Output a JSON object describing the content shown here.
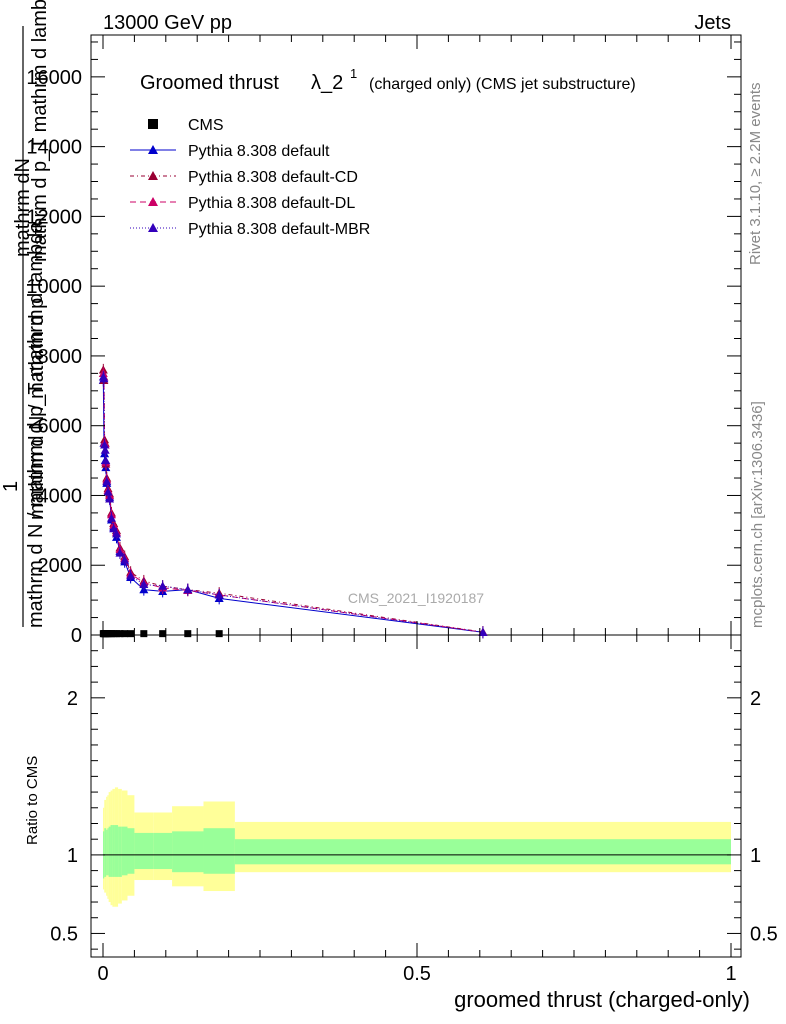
{
  "header": {
    "left": "13000 GeV pp",
    "right": "Jets"
  },
  "title": {
    "main": "Groomed thrust",
    "symbol": "λ_2",
    "sup": "1",
    "small": "(charged only) (CMS jet substructure)"
  },
  "side_labels": {
    "rivet": "Rivet 3.1.10, ≥ 2.2M events",
    "mcplots": "mcplots.cern.ch [arXiv:1306.3436]"
  },
  "watermark": "CMS_2021_I1920187",
  "y_label": {
    "numerator": "mathrm dN",
    "numerator_2": "mathrm d p_T mathrm d lambda",
    "one": "1",
    "denominator": "mathrm d N / mathrm d p_T mathrm d lambda",
    "fragment": "mathrm d N / mathrm d p"
  },
  "x_label": "groomed thrust (charged-only)",
  "ratio_label": "Ratio to CMS",
  "legend": [
    {
      "label": "CMS",
      "color": "#000000",
      "marker": "square",
      "dash": ""
    },
    {
      "label": "Pythia 8.308 default",
      "color": "#0000cc",
      "marker": "triangle",
      "dash": ""
    },
    {
      "label": "Pythia 8.308 default-CD",
      "color": "#990033",
      "marker": "triangle",
      "dash": "4,3,1,3"
    },
    {
      "label": "Pythia 8.308 default-DL",
      "color": "#cc0066",
      "marker": "triangle",
      "dash": "6,4"
    },
    {
      "label": "Pythia 8.308 default-MBR",
      "color": "#3300bb",
      "marker": "triangle",
      "dash": "1,2"
    }
  ],
  "chart_data": {
    "type": "line",
    "x_range": [
      -0.02,
      1.0
    ],
    "main_ylim": [
      0,
      17200
    ],
    "main_yticks": [
      0,
      2000,
      4000,
      6000,
      8000,
      10000,
      12000,
      14000,
      16000
    ],
    "main_ytick_labels": [
      "0",
      "2000",
      "4000",
      "6000",
      "8000",
      "10000",
      "12000",
      "14000",
      "16000"
    ],
    "xticks": [
      0,
      0.5,
      1
    ],
    "xtick_labels": [
      "0",
      "0.5",
      "1"
    ],
    "ratio_ylim": [
      0.35,
      2.4
    ],
    "ratio_yticks": [
      0.5,
      1,
      2
    ],
    "ratio_ytick_labels": [
      "0.5",
      "1",
      "2"
    ],
    "cms": {
      "name": "CMS",
      "x": [
        0.0005,
        0.0015,
        0.0025,
        0.0035,
        0.0045,
        0.006,
        0.008,
        0.0105,
        0.0135,
        0.017,
        0.0215,
        0.027,
        0.0345,
        0.044,
        0.065,
        0.095,
        0.135,
        0.185
      ],
      "y": [
        10,
        10,
        10,
        10,
        10,
        10,
        10,
        10,
        10,
        10,
        10,
        10,
        10,
        10,
        10,
        10,
        10,
        10
      ]
    },
    "series": [
      {
        "name": "Pythia 8.308 default",
        "x": [
          0.0005,
          0.0015,
          0.0025,
          0.0035,
          0.0045,
          0.006,
          0.008,
          0.0105,
          0.0135,
          0.017,
          0.0215,
          0.027,
          0.0345,
          0.044,
          0.065,
          0.095,
          0.135,
          0.185,
          0.605
        ],
        "y": [
          7300,
          5500,
          5200,
          5000,
          4800,
          4350,
          4100,
          3950,
          3300,
          3100,
          2800,
          2400,
          2100,
          1650,
          1300,
          1250,
          1300,
          1050,
          80
        ]
      },
      {
        "name": "Pythia 8.308 default-CD",
        "x": [
          0.0005,
          0.0015,
          0.0025,
          0.0035,
          0.0045,
          0.006,
          0.008,
          0.0105,
          0.0135,
          0.017,
          0.0215,
          0.027,
          0.0345,
          0.044,
          0.065,
          0.095,
          0.135,
          0.185,
          0.605
        ],
        "y": [
          7600,
          7300,
          5600,
          5500,
          4900,
          4500,
          4200,
          4050,
          3500,
          3200,
          3000,
          2500,
          2250,
          1800,
          1550,
          1400,
          1300,
          1200,
          85
        ]
      },
      {
        "name": "Pythia 8.308 default-DL",
        "x": [
          0.0005,
          0.0015,
          0.0025,
          0.0035,
          0.0045,
          0.006,
          0.008,
          0.0105,
          0.0135,
          0.017,
          0.0215,
          0.027,
          0.0345,
          0.044,
          0.065,
          0.095,
          0.135,
          0.185,
          0.605
        ],
        "y": [
          7500,
          7400,
          5500,
          5450,
          4950,
          4450,
          4150,
          4000,
          3450,
          3150,
          2950,
          2450,
          2200,
          1750,
          1500,
          1350,
          1280,
          1150,
          80
        ]
      },
      {
        "name": "Pythia 8.308 default-MBR",
        "x": [
          0.0005,
          0.0015,
          0.0025,
          0.0035,
          0.0045,
          0.006,
          0.008,
          0.0105,
          0.0135,
          0.017,
          0.0215,
          0.027,
          0.0345,
          0.044,
          0.065,
          0.095,
          0.135,
          0.185,
          0.605
        ],
        "y": [
          7400,
          7350,
          5450,
          5300,
          5000,
          4400,
          4100,
          3900,
          3350,
          3050,
          2900,
          2350,
          2150,
          1700,
          1450,
          1400,
          1300,
          1150,
          75
        ]
      }
    ],
    "ratio_bands": [
      {
        "x0": 0.0,
        "x1": 0.002,
        "inner": [
          0.85,
          1.15
        ],
        "outer": [
          0.78,
          1.3
        ]
      },
      {
        "x0": 0.002,
        "x1": 0.005,
        "inner": [
          0.86,
          1.17
        ],
        "outer": [
          0.76,
          1.35
        ]
      },
      {
        "x0": 0.005,
        "x1": 0.007,
        "inner": [
          0.87,
          1.16
        ],
        "outer": [
          0.74,
          1.37
        ]
      },
      {
        "x0": 0.007,
        "x1": 0.009,
        "inner": [
          0.87,
          1.17
        ],
        "outer": [
          0.72,
          1.38
        ]
      },
      {
        "x0": 0.009,
        "x1": 0.012,
        "inner": [
          0.86,
          1.18
        ],
        "outer": [
          0.7,
          1.4
        ]
      },
      {
        "x0": 0.012,
        "x1": 0.015,
        "inner": [
          0.86,
          1.19
        ],
        "outer": [
          0.68,
          1.41
        ]
      },
      {
        "x0": 0.015,
        "x1": 0.019,
        "inner": [
          0.86,
          1.19
        ],
        "outer": [
          0.67,
          1.42
        ]
      },
      {
        "x0": 0.019,
        "x1": 0.024,
        "inner": [
          0.86,
          1.19
        ],
        "outer": [
          0.67,
          1.43
        ]
      },
      {
        "x0": 0.024,
        "x1": 0.03,
        "inner": [
          0.86,
          1.18
        ],
        "outer": [
          0.69,
          1.42
        ]
      },
      {
        "x0": 0.03,
        "x1": 0.039,
        "inner": [
          0.87,
          1.18
        ],
        "outer": [
          0.71,
          1.41
        ]
      },
      {
        "x0": 0.039,
        "x1": 0.05,
        "inner": [
          0.88,
          1.17
        ],
        "outer": [
          0.74,
          1.38
        ]
      },
      {
        "x0": 0.05,
        "x1": 0.08,
        "inner": [
          0.91,
          1.14
        ],
        "outer": [
          0.84,
          1.27
        ]
      },
      {
        "x0": 0.08,
        "x1": 0.11,
        "inner": [
          0.91,
          1.14
        ],
        "outer": [
          0.84,
          1.27
        ]
      },
      {
        "x0": 0.11,
        "x1": 0.16,
        "inner": [
          0.89,
          1.15
        ],
        "outer": [
          0.8,
          1.31
        ]
      },
      {
        "x0": 0.16,
        "x1": 0.21,
        "inner": [
          0.88,
          1.17
        ],
        "outer": [
          0.77,
          1.34
        ]
      },
      {
        "x0": 0.21,
        "x1": 1.0,
        "inner": [
          0.94,
          1.1
        ],
        "outer": [
          0.89,
          1.21
        ]
      }
    ],
    "band_colors": {
      "inner": "#99ff99",
      "outer": "#ffff99"
    }
  }
}
